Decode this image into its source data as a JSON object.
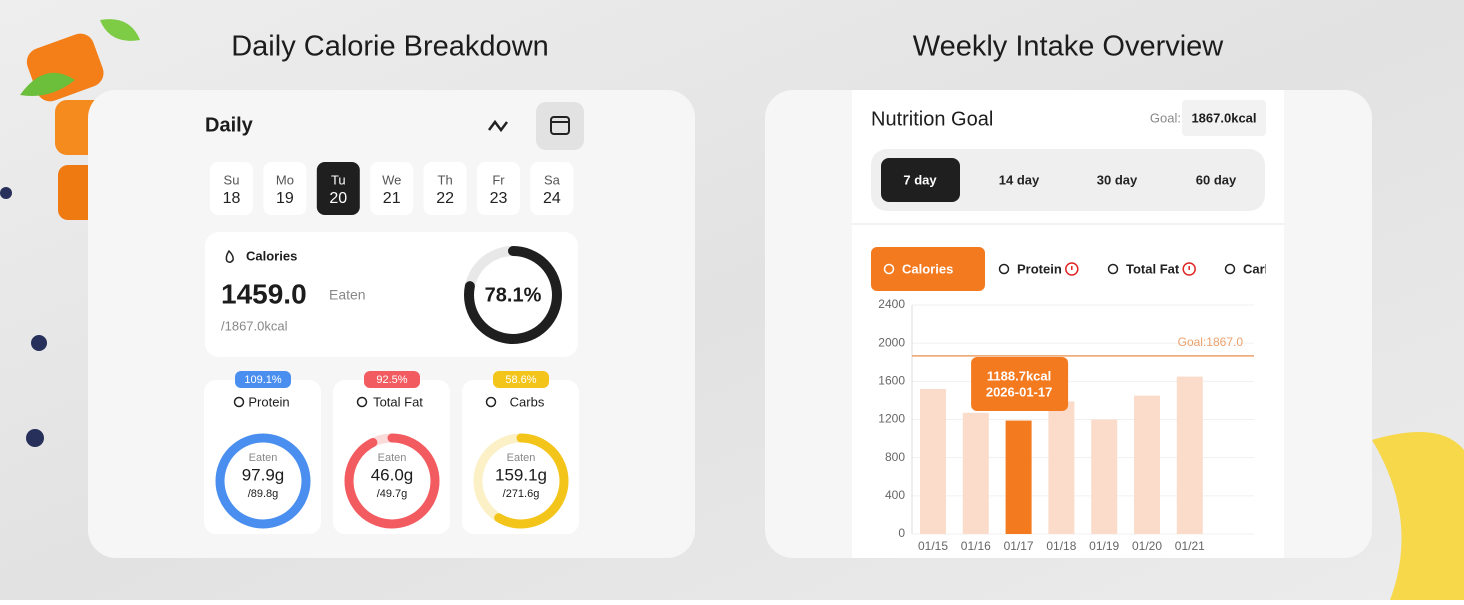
{
  "left": {
    "heading": "Daily Calorie Breakdown",
    "title": "Daily",
    "days": [
      {
        "name": "Su",
        "date": 18
      },
      {
        "name": "Mo",
        "date": 19
      },
      {
        "name": "Tu",
        "date": 20
      },
      {
        "name": "We",
        "date": 21
      },
      {
        "name": "Th",
        "date": 22
      },
      {
        "name": "Fr",
        "date": 23
      },
      {
        "name": "Sa",
        "date": 24
      }
    ],
    "selected_day": "Tu",
    "calories": {
      "label": "Calories",
      "amount": "1459.0",
      "eaten_label": "Eaten",
      "target": "/1867.0kcal",
      "percent": {
        "value": 78.1,
        "label": "78.1%"
      }
    },
    "macros": [
      {
        "name": "Protein",
        "percent": {
          "value": 109.1,
          "label": "109.1%"
        },
        "eaten_label": "Eaten",
        "amount": "97.9g",
        "target": "/89.8g",
        "color": "#4a8ff0",
        "track": "#dbe8fb"
      },
      {
        "name": "Total Fat",
        "percent": {
          "value": 92.5,
          "label": "92.5%"
        },
        "eaten_label": "Eaten",
        "amount": "46.0g",
        "target": "/49.7g",
        "color": "#f25b60",
        "track": "#fbdada"
      },
      {
        "name": "Carbs",
        "percent": {
          "value": 58.6,
          "label": "58.6%"
        },
        "eaten_label": "Eaten",
        "amount": "159.1g",
        "target": "/271.6g",
        "color": "#f3c51b",
        "track": "#fbf0c6"
      }
    ]
  },
  "right": {
    "heading": "Weekly Intake Overview",
    "title": "Nutrition Goal",
    "goal_label": "Goal:",
    "goal_value": "1867.0kcal",
    "ranges": [
      "7 day",
      "14 day",
      "30 day",
      "60 day"
    ],
    "selected_range": "7 day",
    "tabs": [
      "Calories",
      "Protein",
      "Total Fat",
      "Carbs"
    ],
    "selected_tab": "Calories"
  },
  "chart_data": {
    "type": "bar",
    "categories": [
      "01/15",
      "01/16",
      "01/17",
      "01/18",
      "01/19",
      "01/20",
      "01/21"
    ],
    "values": [
      1520,
      1270,
      1188.7,
      1390,
      1200,
      1450,
      1650
    ],
    "value_labels": [
      null,
      null,
      "1188.7kcal",
      null,
      null,
      null,
      null
    ],
    "tooltip_date": "2026-01-17",
    "selected": "01/17",
    "color": "#fbdccb",
    "highlight_color": "#f47a20",
    "ylim": [
      0,
      2400
    ],
    "yticks": [
      0,
      400,
      800,
      1200,
      1600,
      2000,
      2400
    ],
    "grid": true,
    "goal": {
      "value": 1867,
      "label": "Goal:1867.0"
    },
    "goal_color": "#eda06a"
  }
}
